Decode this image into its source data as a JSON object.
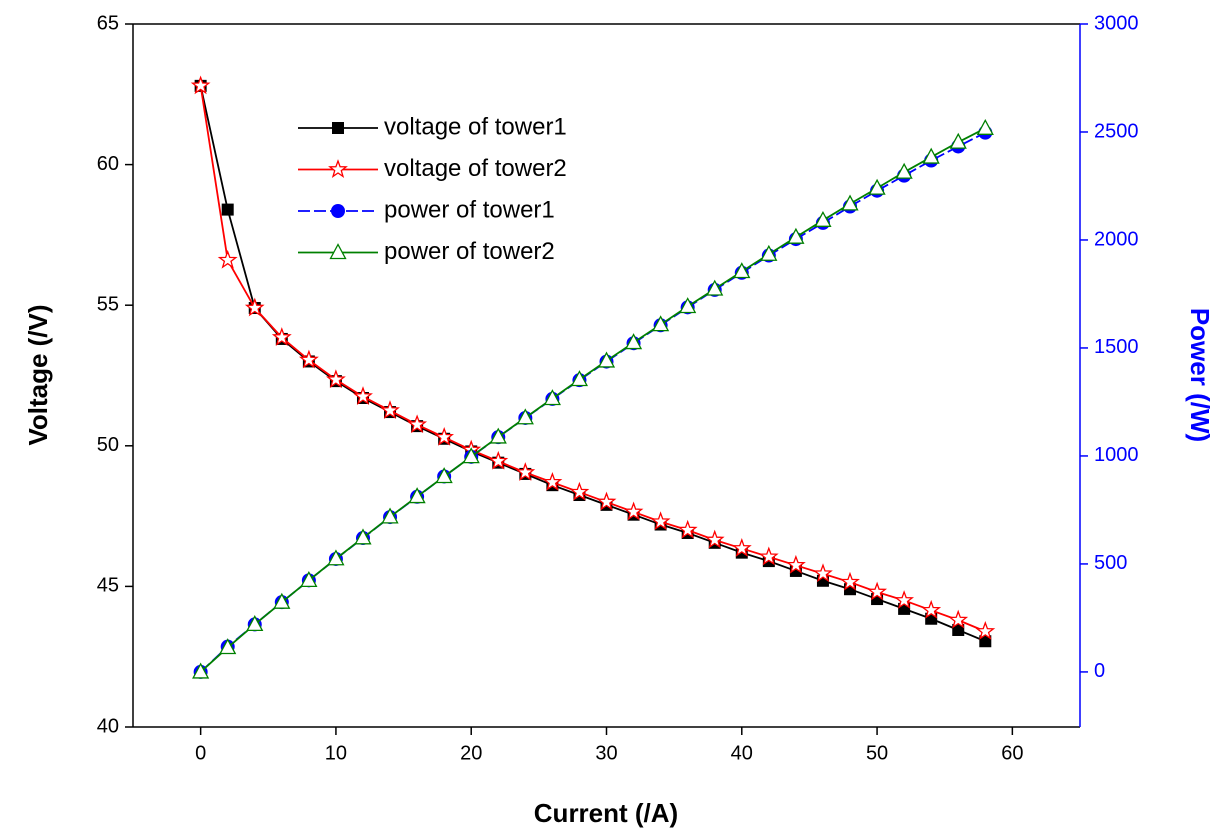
{
  "chart_data": {
    "type": "line",
    "x_label": "Current (/A)",
    "y_label": "Voltage (/V)",
    "y2_label": "Power (/W)",
    "x": [
      0,
      2,
      4,
      6,
      8,
      10,
      12,
      14,
      16,
      18,
      20,
      22,
      24,
      26,
      28,
      30,
      32,
      34,
      36,
      38,
      40,
      42,
      44,
      46,
      48,
      50,
      52,
      54,
      56,
      58
    ],
    "xlim": [
      -5,
      65
    ],
    "xticks": [
      0,
      10,
      20,
      30,
      40,
      50,
      60
    ],
    "ylim": [
      40,
      65
    ],
    "yticks": [
      40,
      45,
      50,
      55,
      60,
      65
    ],
    "y2lim": [
      -255,
      3000
    ],
    "y2ticks": [
      0,
      500,
      1000,
      1500,
      2000,
      2500,
      3000
    ],
    "y2_color": "#0000ff",
    "series": [
      {
        "name": "voltage of tower1",
        "color": "#000000",
        "marker": "square",
        "dash": false,
        "values": [
          62.8,
          58.4,
          54.9,
          53.8,
          53.0,
          52.3,
          51.7,
          51.2,
          50.7,
          50.25,
          49.8,
          49.4,
          49.0,
          48.6,
          48.25,
          47.9,
          47.55,
          47.2,
          46.9,
          46.55,
          46.2,
          45.9,
          45.55,
          45.2,
          44.9,
          44.55,
          44.2,
          43.85,
          43.45,
          43.05
        ]
      },
      {
        "name": "voltage of tower2",
        "color": "#ff0000",
        "marker": "star",
        "dash": false,
        "values": [
          62.8,
          56.6,
          54.9,
          53.85,
          53.05,
          52.35,
          51.75,
          51.25,
          50.75,
          50.3,
          49.85,
          49.45,
          49.05,
          48.7,
          48.35,
          48.0,
          47.65,
          47.3,
          47.0,
          46.65,
          46.35,
          46.05,
          45.75,
          45.45,
          45.15,
          44.8,
          44.5,
          44.15,
          43.8,
          43.4
        ]
      },
      {
        "name": "power of tower1",
        "color": "#0000ff",
        "marker": "circle",
        "dash": true,
        "axis": "y2",
        "values": [
          0,
          117,
          220,
          323,
          424,
          523,
          620,
          717,
          811,
          905,
          996,
          1087,
          1176,
          1264,
          1351,
          1437,
          1522,
          1605,
          1688,
          1769,
          1848,
          1928,
          2004,
          2079,
          2155,
          2228,
          2298,
          2368,
          2433,
          2497
        ]
      },
      {
        "name": "power of tower2",
        "color": "#008000",
        "marker": "triangle",
        "dash": false,
        "axis": "y2",
        "values": [
          0,
          113,
          220,
          323,
          424,
          524,
          621,
          718,
          812,
          905,
          997,
          1088,
          1177,
          1266,
          1354,
          1440,
          1525,
          1608,
          1692,
          1773,
          1854,
          1934,
          2013,
          2091,
          2167,
          2240,
          2314,
          2384,
          2453,
          2517
        ]
      }
    ]
  }
}
